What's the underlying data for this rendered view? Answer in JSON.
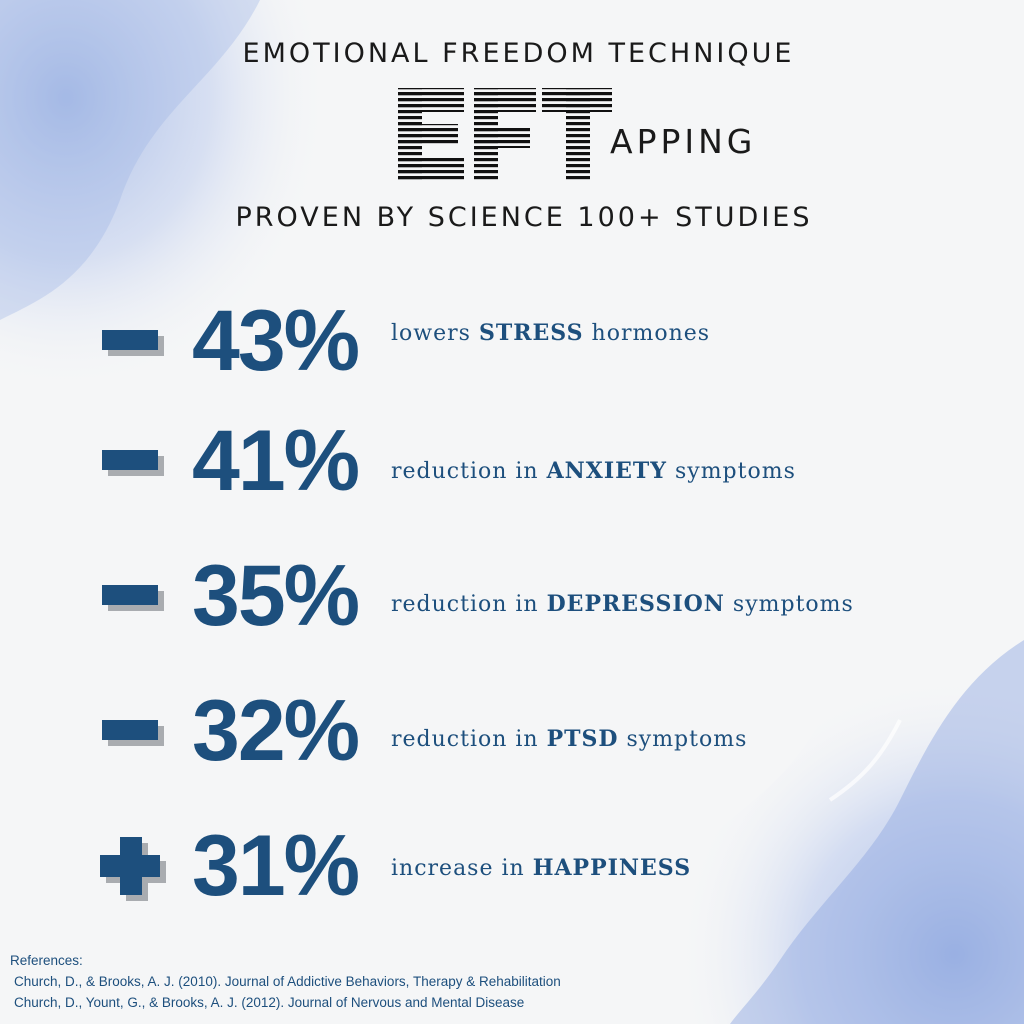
{
  "header": {
    "title": "EMOTIONAL FREEDOM TECHNIQUE",
    "logo_letters": "EFT",
    "logo_tail": "APPING",
    "subtitle": "PROVEN BY SCIENCE 100+ STUDIES"
  },
  "stats": [
    {
      "sign": "−",
      "value": "43%",
      "pre": "lowers ",
      "key": "STRESS",
      "post": " hormones"
    },
    {
      "sign": "−",
      "value": "41%",
      "pre": "reduction in ",
      "key": "ANXIETY",
      "post": " symptoms"
    },
    {
      "sign": "−",
      "value": "35%",
      "pre": "reduction in ",
      "key": "DEPRESSION",
      "post": " symptoms"
    },
    {
      "sign": "−",
      "value": "32%",
      "pre": "reduction in ",
      "key": "PTSD",
      "post": " symptoms"
    },
    {
      "sign": "+",
      "value": "31%",
      "pre": "increase in ",
      "key": "HAPPINESS",
      "post": ""
    }
  ],
  "references": {
    "label": "References:",
    "items": [
      "Church, D., & Brooks, A. J. (2010). Journal of Addictive Behaviors, Therapy & Rehabilitation",
      "Church, D., Yount, G., & Brooks, A. J. (2012). Journal of Nervous and Mental Disease"
    ]
  },
  "colors": {
    "accent": "#1d4f7d",
    "shadow": "#a9acb0",
    "text": "#1a1a1a",
    "watercolor": "#8fa9e0"
  }
}
